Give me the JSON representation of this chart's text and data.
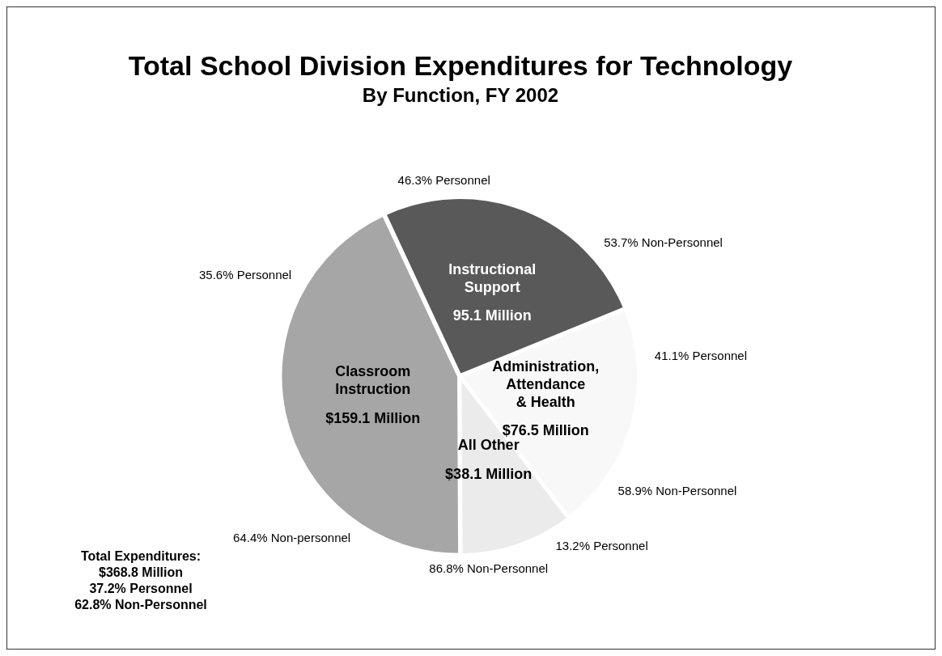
{
  "chart_data": {
    "type": "pie",
    "title": "Total School Division Expenditures for Technology",
    "subtitle": "By Function, FY 2002",
    "categories": [
      "Instructional\nSupport",
      "Administration,\nAttendance\n& Health",
      "All Other",
      "Classroom\nInstruction"
    ],
    "values": [
      95.1,
      76.5,
      38.1,
      159.1
    ],
    "value_labels": [
      "95.1 Million",
      "$76.5 Million",
      "$38.1 Million",
      "$159.1 Million"
    ],
    "colors": [
      "#595959",
      "#f8f8f8",
      "#ebebeb",
      "#a6a6a6"
    ],
    "annotations": [
      "46.3% Personnel",
      "53.7% Non-Personnel",
      "41.1% Personnel",
      "58.9% Non-Personnel",
      "13.2% Personnel",
      "86.8% Non-Personnel",
      "64.4% Non-personnel",
      "35.6% Personnel",
      "Total Expenditures:\n$368.8 Million\n37.2% Personnel\n62.8% Non-Personnel"
    ],
    "legend": false
  }
}
